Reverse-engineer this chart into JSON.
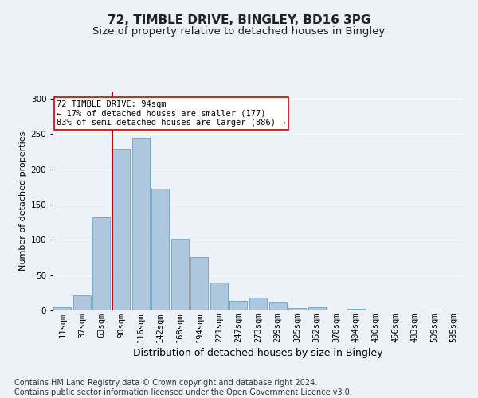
{
  "title_line1": "72, TIMBLE DRIVE, BINGLEY, BD16 3PG",
  "title_line2": "Size of property relative to detached houses in Bingley",
  "xlabel": "Distribution of detached houses by size in Bingley",
  "ylabel": "Number of detached properties",
  "categories": [
    "11sqm",
    "37sqm",
    "63sqm",
    "90sqm",
    "116sqm",
    "142sqm",
    "168sqm",
    "194sqm",
    "221sqm",
    "247sqm",
    "273sqm",
    "299sqm",
    "325sqm",
    "352sqm",
    "378sqm",
    "404sqm",
    "430sqm",
    "456sqm",
    "483sqm",
    "509sqm",
    "535sqm"
  ],
  "values": [
    4,
    21,
    132,
    229,
    245,
    172,
    102,
    76,
    40,
    14,
    18,
    11,
    3,
    4,
    0,
    2,
    0,
    0,
    0,
    1,
    0
  ],
  "bar_color": "#aec6de",
  "bar_edge_color": "#7aaac8",
  "background_color": "#edf2f9",
  "grid_color": "#ffffff",
  "vline_color": "#cc0000",
  "vline_x_index": 3,
  "annotation_text": "72 TIMBLE DRIVE: 94sqm\n← 17% of detached houses are smaller (177)\n83% of semi-detached houses are larger (886) →",
  "annotation_box_color": "#ffffff",
  "annotation_box_edge": "#cc0000",
  "footnote": "Contains HM Land Registry data © Crown copyright and database right 2024.\nContains public sector information licensed under the Open Government Licence v3.0.",
  "ylim": [
    0,
    310
  ],
  "title_fontsize": 11,
  "subtitle_fontsize": 9.5,
  "xlabel_fontsize": 9,
  "ylabel_fontsize": 8,
  "tick_fontsize": 7.5,
  "footnote_fontsize": 7
}
